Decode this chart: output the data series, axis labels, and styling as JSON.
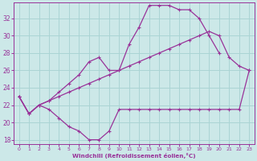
{
  "xlabel": "Windchill (Refroidissement éolien,°C)",
  "bg_color": "#cce8e8",
  "grid_color": "#aad4d4",
  "line_color": "#993399",
  "x_hours": [
    0,
    1,
    2,
    3,
    4,
    5,
    6,
    7,
    8,
    9,
    10,
    11,
    12,
    13,
    14,
    15,
    16,
    17,
    18,
    19,
    20,
    21,
    22,
    23
  ],
  "line1_y": [
    23.0,
    21.0,
    22.0,
    21.5,
    20.5,
    19.5,
    19.0,
    18.0,
    18.0,
    19.0,
    21.5,
    21.5,
    21.5,
    21.5,
    21.5,
    21.5,
    21.5,
    21.5,
    21.5,
    21.5,
    21.5,
    21.5,
    21.5,
    26.0
  ],
  "line2_y": [
    23.0,
    21.0,
    22.0,
    22.5,
    23.5,
    24.5,
    25.5,
    27.0,
    27.5,
    26.0,
    26.0,
    29.0,
    31.0,
    33.5,
    33.5,
    33.5,
    33.0,
    33.0,
    32.0,
    30.0,
    28.0,
    null,
    null,
    null
  ],
  "line3_y": [
    23.0,
    21.0,
    22.0,
    22.5,
    23.0,
    23.5,
    24.0,
    24.5,
    25.0,
    25.5,
    26.0,
    26.5,
    27.0,
    27.5,
    28.0,
    28.5,
    29.0,
    29.5,
    30.0,
    30.5,
    30.0,
    27.5,
    26.5,
    26.0
  ],
  "ylim": [
    17.5,
    33.8
  ],
  "yticks": [
    18,
    20,
    22,
    24,
    26,
    28,
    30,
    32
  ],
  "xlim": [
    -0.5,
    23.5
  ],
  "xticks": [
    0,
    1,
    2,
    3,
    4,
    5,
    6,
    7,
    8,
    9,
    10,
    11,
    12,
    13,
    14,
    15,
    16,
    17,
    18,
    19,
    20,
    21,
    22,
    23
  ]
}
